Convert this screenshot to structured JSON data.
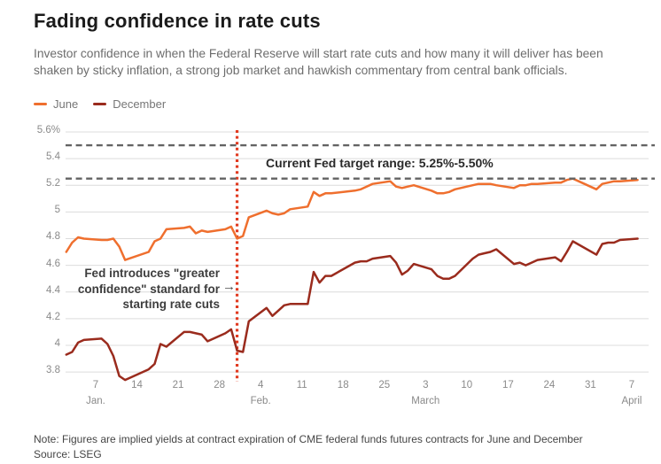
{
  "header": {
    "title": "Fading confidence in rate cuts",
    "subtitle": "Investor confidence in when the Federal Reserve will start rate cuts and how many it will deliver has been\nshaken by sticky inflation, a strong job market and hawkish commentary from central bank officials."
  },
  "annotations": {
    "target_range": "Current Fed target range: 5.25%-5.50%",
    "fed_note": "Fed introduces \"greater\nconfidence\" standard for\nstarting rate cuts",
    "arrow_icon": "→"
  },
  "footer": {
    "note": "Note: Figures are implied yields at contract expiration of CME federal funds futures contracts for June and December",
    "source": "Source: LSEG"
  },
  "chart_data": {
    "type": "line",
    "title": "Fading confidence in rate cuts",
    "ylabel": "",
    "xlabel": "",
    "grid": true,
    "legend_position": "top-left",
    "y_axis": {
      "range": [
        3.8,
        5.6
      ],
      "ticks": [
        {
          "label": "5.6%",
          "value": 5.6
        },
        {
          "label": "5.4",
          "value": 5.4
        },
        {
          "label": "5.2",
          "value": 5.2
        },
        {
          "label": "5",
          "value": 5.0
        },
        {
          "label": "4.8",
          "value": 4.8
        },
        {
          "label": "4.6",
          "value": 4.6
        },
        {
          "label": "4.4",
          "value": 4.4
        },
        {
          "label": "4.2",
          "value": 4.2
        },
        {
          "label": "4",
          "value": 4.0
        },
        {
          "label": "3.8",
          "value": 3.8
        }
      ]
    },
    "x_axis": {
      "ticks": [
        {
          "date": "Jan 7",
          "label": "7",
          "month_label": "Jan."
        },
        {
          "date": "Jan 14",
          "label": "14"
        },
        {
          "date": "Jan 21",
          "label": "21"
        },
        {
          "date": "Jan 28",
          "label": "28"
        },
        {
          "date": "Feb 4",
          "label": "4",
          "month_label": "Feb."
        },
        {
          "date": "Feb 11",
          "label": "11"
        },
        {
          "date": "Feb 18",
          "label": "18"
        },
        {
          "date": "Feb 25",
          "label": "25"
        },
        {
          "date": "Mar 3",
          "label": "3",
          "month_label": "March"
        },
        {
          "date": "Mar 10",
          "label": "10"
        },
        {
          "date": "Mar 17",
          "label": "17"
        },
        {
          "date": "Mar 24",
          "label": "24"
        },
        {
          "date": "Mar 31",
          "label": "31"
        },
        {
          "date": "Apr 7",
          "label": "7",
          "month_label": "April"
        }
      ]
    },
    "reference_lines": [
      {
        "value": 5.5,
        "style": "dashed",
        "color": "#636363"
      },
      {
        "value": 5.25,
        "style": "dashed",
        "color": "#636363"
      }
    ],
    "event_line": {
      "date": "Jan 31",
      "style": "dotted",
      "color": "#e13a20"
    },
    "series": [
      {
        "name": "June",
        "color": "#ef6f2e",
        "points": [
          [
            "Jan 2",
            4.7
          ],
          [
            "Jan 3",
            4.77
          ],
          [
            "Jan 4",
            4.81
          ],
          [
            "Jan 5",
            4.8
          ],
          [
            "Jan 8",
            4.79
          ],
          [
            "Jan 9",
            4.79
          ],
          [
            "Jan 10",
            4.8
          ],
          [
            "Jan 11",
            4.74
          ],
          [
            "Jan 12",
            4.64
          ],
          [
            "Jan 16",
            4.7
          ],
          [
            "Jan 17",
            4.78
          ],
          [
            "Jan 18",
            4.8
          ],
          [
            "Jan 19",
            4.87
          ],
          [
            "Jan 22",
            4.88
          ],
          [
            "Jan 23",
            4.89
          ],
          [
            "Jan 24",
            4.84
          ],
          [
            "Jan 25",
            4.86
          ],
          [
            "Jan 26",
            4.85
          ],
          [
            "Jan 29",
            4.87
          ],
          [
            "Jan 30",
            4.89
          ],
          [
            "Jan 31",
            4.8
          ],
          [
            "Feb 1",
            4.82
          ],
          [
            "Feb 2",
            4.96
          ],
          [
            "Feb 5",
            5.01
          ],
          [
            "Feb 6",
            4.99
          ],
          [
            "Feb 7",
            4.98
          ],
          [
            "Feb 8",
            4.99
          ],
          [
            "Feb 9",
            5.02
          ],
          [
            "Feb 12",
            5.04
          ],
          [
            "Feb 13",
            5.15
          ],
          [
            "Feb 14",
            5.12
          ],
          [
            "Feb 15",
            5.14
          ],
          [
            "Feb 16",
            5.14
          ],
          [
            "Feb 20",
            5.16
          ],
          [
            "Feb 21",
            5.17
          ],
          [
            "Feb 22",
            5.19
          ],
          [
            "Feb 23",
            5.21
          ],
          [
            "Feb 26",
            5.23
          ],
          [
            "Feb 27",
            5.19
          ],
          [
            "Feb 28",
            5.18
          ],
          [
            "Feb 29",
            5.19
          ],
          [
            "Mar 1",
            5.2
          ],
          [
            "Mar 4",
            5.16
          ],
          [
            "Mar 5",
            5.14
          ],
          [
            "Mar 6",
            5.14
          ],
          [
            "Mar 7",
            5.15
          ],
          [
            "Mar 8",
            5.17
          ],
          [
            "Mar 11",
            5.2
          ],
          [
            "Mar 12",
            5.21
          ],
          [
            "Mar 13",
            5.21
          ],
          [
            "Mar 14",
            5.21
          ],
          [
            "Mar 15",
            5.2
          ],
          [
            "Mar 18",
            5.18
          ],
          [
            "Mar 19",
            5.2
          ],
          [
            "Mar 20",
            5.2
          ],
          [
            "Mar 21",
            5.21
          ],
          [
            "Mar 22",
            5.21
          ],
          [
            "Mar 25",
            5.22
          ],
          [
            "Mar 26",
            5.22
          ],
          [
            "Mar 27",
            5.24
          ],
          [
            "Mar 28",
            5.25
          ],
          [
            "Apr 1",
            5.17
          ],
          [
            "Apr 2",
            5.21
          ],
          [
            "Apr 3",
            5.22
          ],
          [
            "Apr 4",
            5.23
          ],
          [
            "Apr 5",
            5.23
          ],
          [
            "Apr 8",
            5.24
          ]
        ]
      },
      {
        "name": "December",
        "color": "#9a2b1d",
        "points": [
          [
            "Jan 2",
            3.93
          ],
          [
            "Jan 3",
            3.95
          ],
          [
            "Jan 4",
            4.02
          ],
          [
            "Jan 5",
            4.04
          ],
          [
            "Jan 8",
            4.05
          ],
          [
            "Jan 9",
            4.01
          ],
          [
            "Jan 10",
            3.92
          ],
          [
            "Jan 11",
            3.77
          ],
          [
            "Jan 12",
            3.74
          ],
          [
            "Jan 16",
            3.82
          ],
          [
            "Jan 17",
            3.86
          ],
          [
            "Jan 18",
            4.01
          ],
          [
            "Jan 19",
            3.99
          ],
          [
            "Jan 22",
            4.1
          ],
          [
            "Jan 23",
            4.1
          ],
          [
            "Jan 24",
            4.09
          ],
          [
            "Jan 25",
            4.08
          ],
          [
            "Jan 26",
            4.03
          ],
          [
            "Jan 29",
            4.09
          ],
          [
            "Jan 30",
            4.12
          ],
          [
            "Jan 31",
            3.96
          ],
          [
            "Feb 1",
            3.95
          ],
          [
            "Feb 2",
            4.18
          ],
          [
            "Feb 5",
            4.28
          ],
          [
            "Feb 6",
            4.22
          ],
          [
            "Feb 7",
            4.26
          ],
          [
            "Feb 8",
            4.3
          ],
          [
            "Feb 9",
            4.31
          ],
          [
            "Feb 12",
            4.31
          ],
          [
            "Feb 13",
            4.55
          ],
          [
            "Feb 14",
            4.47
          ],
          [
            "Feb 15",
            4.52
          ],
          [
            "Feb 16",
            4.52
          ],
          [
            "Feb 20",
            4.62
          ],
          [
            "Feb 21",
            4.63
          ],
          [
            "Feb 22",
            4.63
          ],
          [
            "Feb 23",
            4.65
          ],
          [
            "Feb 26",
            4.67
          ],
          [
            "Feb 27",
            4.62
          ],
          [
            "Feb 28",
            4.53
          ],
          [
            "Feb 29",
            4.56
          ],
          [
            "Mar 1",
            4.61
          ],
          [
            "Mar 4",
            4.57
          ],
          [
            "Mar 5",
            4.52
          ],
          [
            "Mar 6",
            4.5
          ],
          [
            "Mar 7",
            4.5
          ],
          [
            "Mar 8",
            4.52
          ],
          [
            "Mar 11",
            4.65
          ],
          [
            "Mar 12",
            4.68
          ],
          [
            "Mar 13",
            4.69
          ],
          [
            "Mar 14",
            4.7
          ],
          [
            "Mar 15",
            4.72
          ],
          [
            "Mar 18",
            4.61
          ],
          [
            "Mar 19",
            4.62
          ],
          [
            "Mar 20",
            4.6
          ],
          [
            "Mar 21",
            4.62
          ],
          [
            "Mar 22",
            4.64
          ],
          [
            "Mar 25",
            4.66
          ],
          [
            "Mar 26",
            4.63
          ],
          [
            "Mar 27",
            4.7
          ],
          [
            "Mar 28",
            4.78
          ],
          [
            "Apr 1",
            4.68
          ],
          [
            "Apr 2",
            4.76
          ],
          [
            "Apr 3",
            4.77
          ],
          [
            "Apr 4",
            4.77
          ],
          [
            "Apr 5",
            4.79
          ],
          [
            "Apr 8",
            4.8
          ]
        ]
      }
    ]
  }
}
